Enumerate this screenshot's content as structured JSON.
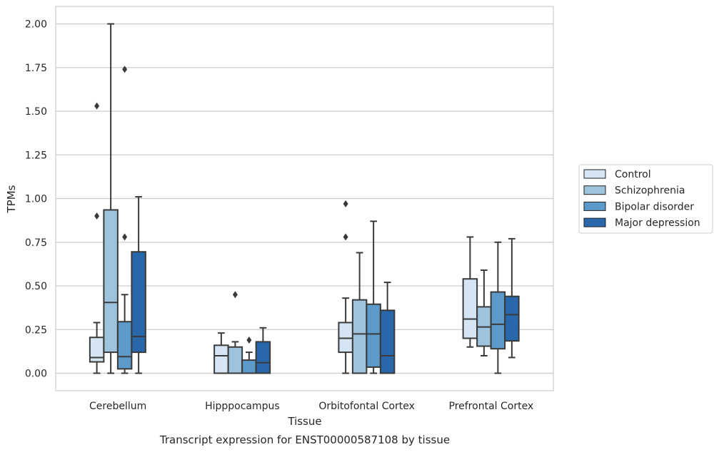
{
  "chart_data": {
    "type": "boxplot",
    "caption": "Transcript expression for ENST00000587108 by tissue",
    "xlabel": "Tissue",
    "ylabel": "TPMs",
    "ylim": [
      -0.1,
      2.1
    ],
    "yticks": [
      0.0,
      0.25,
      0.5,
      0.75,
      1.0,
      1.25,
      1.5,
      1.75,
      2.0
    ],
    "ytick_labels": [
      "0.00",
      "0.25",
      "0.50",
      "0.75",
      "1.00",
      "1.25",
      "1.50",
      "1.75",
      "2.00"
    ],
    "grid": true,
    "legend_position": "right-outside",
    "categories": [
      "Cerebellum",
      "Hipppocampus",
      "Orbitofontal Cortex",
      "Prefrontal Cortex"
    ],
    "series": [
      {
        "name": "Control",
        "color": "#d6e5f3",
        "boxes": [
          {
            "whislo": 0.0,
            "q1": 0.065,
            "med": 0.09,
            "q3": 0.205,
            "whishi": 0.29,
            "fliers": [
              0.9,
              1.53
            ]
          },
          {
            "whislo": 0.0,
            "q1": 0.0,
            "med": 0.1,
            "q3": 0.16,
            "whishi": 0.23,
            "fliers": []
          },
          {
            "whislo": 0.0,
            "q1": 0.12,
            "med": 0.2,
            "q3": 0.29,
            "whishi": 0.43,
            "fliers": [
              0.78,
              0.97
            ]
          },
          {
            "whislo": 0.15,
            "q1": 0.2,
            "med": 0.31,
            "q3": 0.54,
            "whishi": 0.78,
            "fliers": []
          }
        ]
      },
      {
        "name": "Schizophrenia",
        "color": "#9dc3dd",
        "boxes": [
          {
            "whislo": 0.0,
            "q1": 0.12,
            "med": 0.405,
            "q3": 0.935,
            "whishi": 2.0,
            "fliers": []
          },
          {
            "whislo": 0.0,
            "q1": 0.0,
            "med": 0.0,
            "q3": 0.15,
            "whishi": 0.18,
            "fliers": [
              0.45
            ]
          },
          {
            "whislo": 0.0,
            "q1": 0.0,
            "med": 0.225,
            "q3": 0.42,
            "whishi": 0.69,
            "fliers": []
          },
          {
            "whislo": 0.1,
            "q1": 0.155,
            "med": 0.265,
            "q3": 0.38,
            "whishi": 0.59,
            "fliers": []
          }
        ]
      },
      {
        "name": "Bipolar disorder",
        "color": "#5b9ac9",
        "boxes": [
          {
            "whislo": 0.0,
            "q1": 0.025,
            "med": 0.095,
            "q3": 0.295,
            "whishi": 0.45,
            "fliers": [
              0.78,
              1.74
            ]
          },
          {
            "whislo": 0.0,
            "q1": 0.0,
            "med": 0.0,
            "q3": 0.075,
            "whishi": 0.12,
            "fliers": [
              0.19
            ]
          },
          {
            "whislo": 0.0,
            "q1": 0.035,
            "med": 0.225,
            "q3": 0.395,
            "whishi": 0.87,
            "fliers": []
          },
          {
            "whislo": 0.0,
            "q1": 0.14,
            "med": 0.28,
            "q3": 0.465,
            "whishi": 0.75,
            "fliers": []
          }
        ]
      },
      {
        "name": "Major depression",
        "color": "#2767aa",
        "boxes": [
          {
            "whislo": 0.0,
            "q1": 0.12,
            "med": 0.21,
            "q3": 0.695,
            "whishi": 1.01,
            "fliers": []
          },
          {
            "whislo": 0.0,
            "q1": 0.0,
            "med": 0.06,
            "q3": 0.18,
            "whishi": 0.26,
            "fliers": []
          },
          {
            "whislo": 0.0,
            "q1": 0.0,
            "med": 0.1,
            "q3": 0.36,
            "whishi": 0.52,
            "fliers": []
          },
          {
            "whislo": 0.09,
            "q1": 0.185,
            "med": 0.335,
            "q3": 0.44,
            "whishi": 0.77,
            "fliers": []
          }
        ]
      }
    ]
  }
}
